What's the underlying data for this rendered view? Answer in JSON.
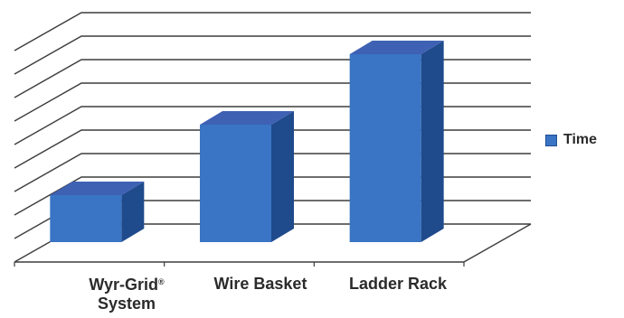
{
  "chart_data": {
    "type": "bar",
    "style": "3d-column",
    "categories": [
      "Wyr-Grid® System",
      "Wire Basket",
      "Ladder Rack"
    ],
    "series": [
      {
        "name": "Time",
        "values": [
          2,
          5,
          8
        ]
      }
    ],
    "ylim": [
      0,
      9
    ],
    "y_tick_labels_shown": false,
    "grid": true,
    "legend": "right",
    "bar_color": "#3a74c4"
  }
}
